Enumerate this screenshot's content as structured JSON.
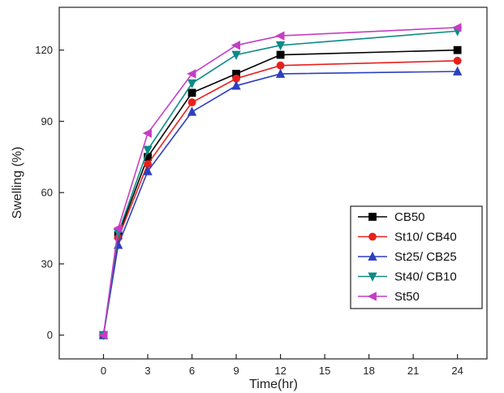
{
  "chart_data": {
    "type": "line",
    "xlabel": "Time(hr)",
    "ylabel": "Swelling (%)",
    "xlim": [
      -3,
      26
    ],
    "ylim": [
      -10,
      138
    ],
    "xticks": [
      0,
      3,
      6,
      9,
      12,
      15,
      18,
      21,
      24
    ],
    "xtick_labels": [
      "0",
      "3",
      "6",
      "9",
      "12",
      "15",
      "18",
      "21",
      "24"
    ],
    "yticks": [
      0,
      30,
      60,
      90,
      120
    ],
    "ytick_labels": [
      "0",
      "30",
      "60",
      "90",
      "120"
    ],
    "grid": false,
    "legend_position": "bottom-right",
    "x": [
      0,
      1,
      3,
      6,
      9,
      12,
      24
    ],
    "series": [
      {
        "name": "CB50",
        "color": "#000000",
        "marker": "square",
        "values": [
          0,
          42,
          75,
          102,
          110,
          118,
          120
        ]
      },
      {
        "name": "St10/ CB40",
        "color": "#e8201c",
        "marker": "circle",
        "values": [
          0,
          41,
          72,
          98,
          108,
          113.5,
          115.5
        ]
      },
      {
        "name": "St25/ CB25",
        "color": "#2e3fbf",
        "marker": "triangle-up",
        "values": [
          0,
          38,
          69,
          94,
          105,
          110,
          111
        ]
      },
      {
        "name": "St40/ CB10",
        "color": "#0e8a87",
        "marker": "triangle-down",
        "values": [
          0,
          43,
          78,
          106,
          118,
          122,
          128
        ]
      },
      {
        "name": "St50",
        "color": "#c43ec4",
        "marker": "triangle-left",
        "values": [
          0,
          45,
          85,
          110,
          122,
          126,
          129.5
        ]
      }
    ]
  }
}
